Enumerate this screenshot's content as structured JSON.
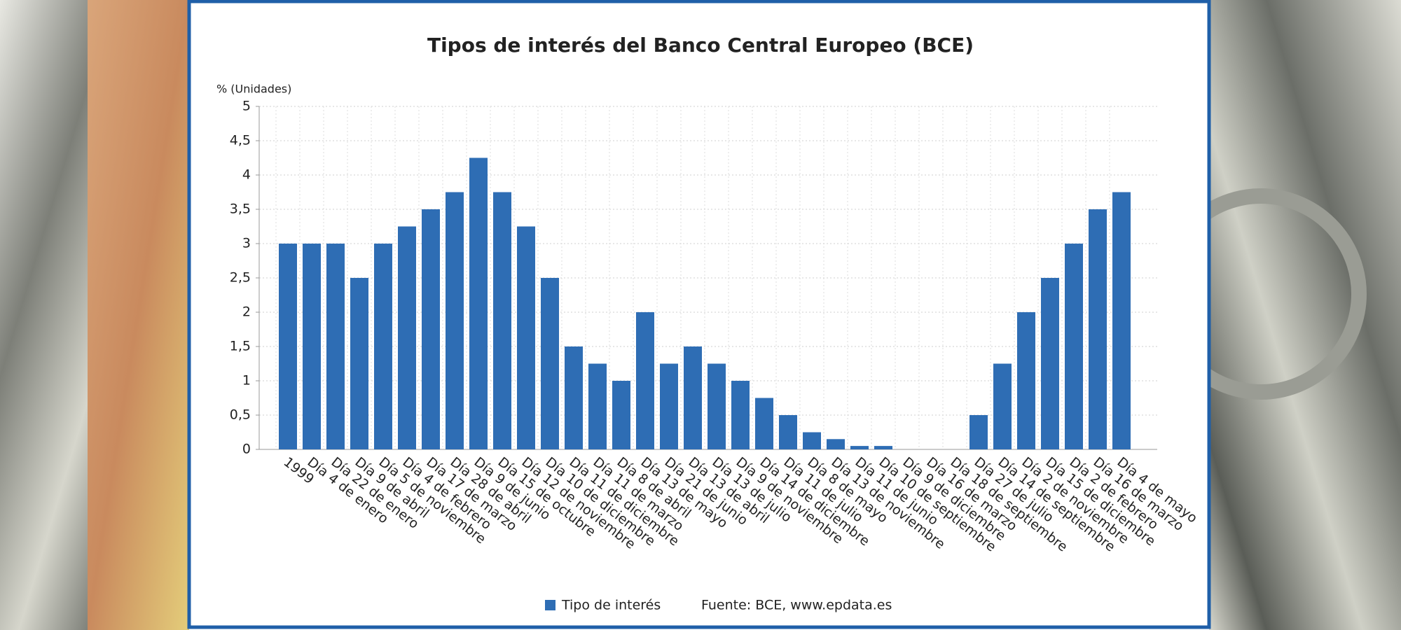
{
  "chart_data": {
    "type": "bar",
    "title": "Tipos de interés del Banco Central Europeo (BCE)",
    "y_axis_label": "% (Unidades)",
    "source": "Fuente: BCE, www.epdata.es",
    "categories": [
      "1999",
      "Día 4 de enero",
      "Día 22 de enero",
      "Día 9 de abril",
      "Día 5 de noviembre",
      "Día 4 de febrero",
      "Día 17 de marzo",
      "Día 28 de abril",
      "Día 9 de junio",
      "Día 15 de octubre",
      "Día 12 de noviembre",
      "Día 10 de diciembre",
      "Día 11 de diciembre",
      "Día 11 de marzo",
      "Día 8 de abril",
      "Día 13 de mayo",
      "Día 21 de junio",
      "Día 13 de abril",
      "Día 13 de julio",
      "Día 9 de noviembre",
      "Día 14 de diciembre",
      "Día 11 de julio",
      "Día 8 de mayo",
      "Día 13 de noviembre",
      "Día 11 de junio",
      "Día 10 de septiembre",
      "Día 9 de diciembre",
      "Día 16 de marzo",
      "Día 18 de septiembre",
      "Día 27 de julio",
      "Día 14 de septiembre",
      "Día 2 de noviembre",
      "Día 15 de diciembre",
      "Día 2 de febrero",
      "Día 16 de marzo",
      "Día 4 de mayo"
    ],
    "series": [
      {
        "name": "Tipo de interés",
        "color": "#2e6db4",
        "values": [
          3,
          3,
          3,
          2.5,
          3,
          3.25,
          3.5,
          3.75,
          4.25,
          3.75,
          3.25,
          2.5,
          1.5,
          1.25,
          1,
          2,
          1.25,
          1.5,
          1.25,
          1,
          0.75,
          0.5,
          0.25,
          0.15,
          0.05,
          0.05,
          0,
          0,
          0,
          0.5,
          1.25,
          2,
          2.5,
          3,
          3.5,
          3.75
        ]
      }
    ],
    "ylim": [
      0,
      5
    ],
    "yticks": [
      0,
      {
        "value": 0.5,
        "label": "0,5"
      },
      1,
      {
        "value": 1.5,
        "label": "1,5"
      },
      2,
      {
        "value": 2.5,
        "label": "2,5"
      },
      3,
      {
        "value": 3.5,
        "label": "3,5"
      },
      4,
      {
        "value": 4.5,
        "label": "4,5"
      },
      5
    ],
    "grid": true,
    "legend": "bottom"
  }
}
